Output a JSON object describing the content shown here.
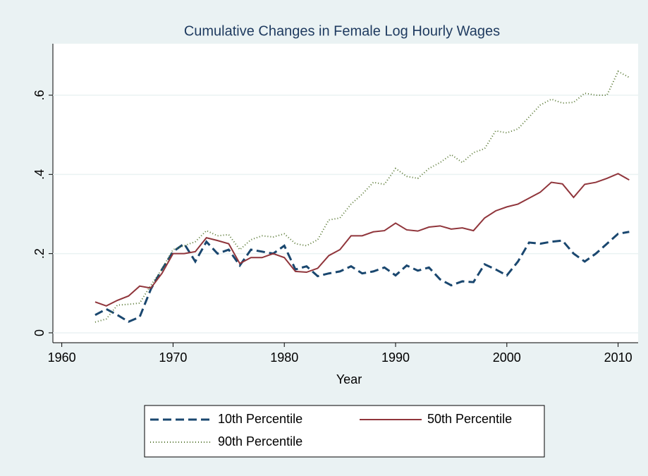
{
  "chart_data": {
    "type": "line",
    "title": "Cumulative Changes in Female Log Hourly Wages",
    "x_label": "Year",
    "x": [
      1963,
      1964,
      1965,
      1966,
      1967,
      1968,
      1969,
      1970,
      1971,
      1972,
      1973,
      1974,
      1975,
      1976,
      1977,
      1978,
      1979,
      1980,
      1981,
      1982,
      1983,
      1984,
      1985,
      1986,
      1987,
      1988,
      1989,
      1990,
      1991,
      1992,
      1993,
      1994,
      1995,
      1996,
      1997,
      1998,
      1999,
      2000,
      2001,
      2002,
      2003,
      2004,
      2005,
      2006,
      2007,
      2008,
      2009,
      2010,
      2011
    ],
    "series": [
      {
        "name": "10th Percentile",
        "color": "#1a476f",
        "dash": "12 6",
        "values": [
          0.045,
          0.06,
          0.045,
          0.028,
          0.04,
          0.11,
          0.16,
          0.205,
          0.225,
          0.18,
          0.23,
          0.2,
          0.21,
          0.17,
          0.21,
          0.205,
          0.2,
          0.22,
          0.16,
          0.168,
          0.143,
          0.15,
          0.155,
          0.168,
          0.15,
          0.155,
          0.165,
          0.145,
          0.17,
          0.157,
          0.165,
          0.135,
          0.12,
          0.13,
          0.128,
          0.173,
          0.16,
          0.145,
          0.18,
          0.228,
          0.225,
          0.23,
          0.233,
          0.2,
          0.18,
          0.2,
          0.225,
          0.25,
          0.255
        ]
      },
      {
        "name": "50th Percentile",
        "color": "#90353b",
        "dash": "none",
        "values": [
          0.078,
          0.068,
          0.082,
          0.093,
          0.118,
          0.113,
          0.15,
          0.2,
          0.2,
          0.205,
          0.24,
          0.233,
          0.225,
          0.175,
          0.19,
          0.19,
          0.2,
          0.19,
          0.155,
          0.153,
          0.163,
          0.195,
          0.21,
          0.245,
          0.245,
          0.255,
          0.258,
          0.277,
          0.26,
          0.257,
          0.267,
          0.27,
          0.262,
          0.265,
          0.258,
          0.29,
          0.308,
          0.318,
          0.325,
          0.34,
          0.355,
          0.38,
          0.376,
          0.342,
          0.375,
          0.38,
          0.39,
          0.402,
          0.386
        ]
      },
      {
        "name": "90th Percentile",
        "color": "#55752f",
        "dash": "1 3",
        "values": [
          0.027,
          0.035,
          0.07,
          0.072,
          0.075,
          0.12,
          0.16,
          0.21,
          0.22,
          0.23,
          0.258,
          0.245,
          0.248,
          0.21,
          0.235,
          0.245,
          0.242,
          0.25,
          0.225,
          0.22,
          0.235,
          0.285,
          0.29,
          0.325,
          0.35,
          0.38,
          0.375,
          0.415,
          0.395,
          0.39,
          0.415,
          0.43,
          0.45,
          0.43,
          0.455,
          0.465,
          0.51,
          0.505,
          0.515,
          0.545,
          0.575,
          0.59,
          0.58,
          0.582,
          0.605,
          0.6,
          0.6,
          0.66,
          0.645
        ]
      }
    ],
    "xlim": [
      1959.2,
      2011.8
    ],
    "xticks": [
      1960,
      1970,
      1980,
      1990,
      2000,
      2010
    ],
    "ylim": [
      -0.025,
      0.73
    ],
    "yticks": [
      0,
      {
        "value": 0.2,
        "label": ".2"
      },
      {
        "value": 0.4,
        "label": ".4"
      },
      {
        "value": 0.6,
        "label": ".6"
      }
    ],
    "grid": true
  }
}
